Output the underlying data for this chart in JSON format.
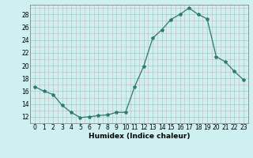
{
  "x": [
    0,
    1,
    2,
    3,
    4,
    5,
    6,
    7,
    8,
    9,
    10,
    11,
    12,
    13,
    14,
    15,
    16,
    17,
    18,
    19,
    20,
    21,
    22,
    23
  ],
  "y": [
    16.7,
    16.0,
    15.5,
    13.8,
    12.7,
    11.9,
    12.0,
    12.2,
    12.3,
    12.7,
    12.7,
    16.7,
    19.9,
    24.3,
    25.6,
    27.2,
    28.0,
    29.0,
    28.0,
    27.3,
    21.4,
    20.6,
    19.1,
    17.8
  ],
  "line_color": "#2d7a6e",
  "marker": "*",
  "marker_size": 3,
  "bg_color": "#cef0f0",
  "xlabel": "Humidex (Indice chaleur)",
  "xlim": [
    -0.5,
    23.5
  ],
  "ylim": [
    11,
    29.5
  ],
  "yticks": [
    12,
    14,
    16,
    18,
    20,
    22,
    24,
    26,
    28
  ],
  "xticks": [
    0,
    1,
    2,
    3,
    4,
    5,
    6,
    7,
    8,
    9,
    10,
    11,
    12,
    13,
    14,
    15,
    16,
    17,
    18,
    19,
    20,
    21,
    22,
    23
  ],
  "xlabel_fontsize": 6.5,
  "tick_fontsize": 5.5,
  "minor_grid_color": "#e8aaaa",
  "major_grid_color": "#a8c8c8"
}
